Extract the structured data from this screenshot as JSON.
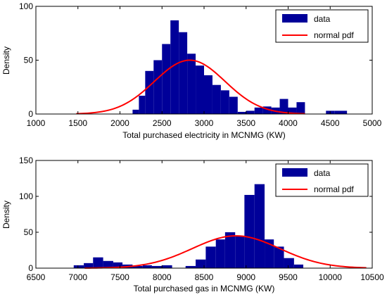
{
  "chart_data": [
    {
      "type": "bar",
      "xlabel": "Total  purchased electricity in MCNMG (KW)",
      "ylabel": "Density",
      "xlim": [
        1000,
        5000
      ],
      "ylim": [
        0,
        100
      ],
      "xticks": [
        "1000",
        "1500",
        "2000",
        "2500",
        "3000",
        "3500",
        "4000",
        "4500",
        "5000"
      ],
      "yticks": [
        "0",
        "50",
        "100"
      ],
      "legend": {
        "placement": "top-right",
        "entries": [
          "data",
          "normal pdf"
        ]
      },
      "series": [
        {
          "name": "data",
          "kind": "histogram",
          "color": "#000099",
          "bins": [
            {
              "x0": 2150,
              "x1": 2225,
              "v": 4
            },
            {
              "x0": 2225,
              "x1": 2300,
              "v": 17
            },
            {
              "x0": 2300,
              "x1": 2400,
              "v": 40
            },
            {
              "x0": 2400,
              "x1": 2500,
              "v": 50
            },
            {
              "x0": 2500,
              "x1": 2600,
              "v": 65
            },
            {
              "x0": 2600,
              "x1": 2700,
              "v": 87
            },
            {
              "x0": 2700,
              "x1": 2800,
              "v": 76
            },
            {
              "x0": 2800,
              "x1": 2900,
              "v": 56
            },
            {
              "x0": 2900,
              "x1": 3000,
              "v": 45
            },
            {
              "x0": 3000,
              "x1": 3100,
              "v": 36
            },
            {
              "x0": 3100,
              "x1": 3200,
              "v": 27
            },
            {
              "x0": 3200,
              "x1": 3300,
              "v": 22
            },
            {
              "x0": 3300,
              "x1": 3400,
              "v": 16
            },
            {
              "x0": 3400,
              "x1": 3500,
              "v": 2
            },
            {
              "x0": 3500,
              "x1": 3600,
              "v": 3
            },
            {
              "x0": 3600,
              "x1": 3700,
              "v": 6
            },
            {
              "x0": 3700,
              "x1": 3800,
              "v": 7
            },
            {
              "x0": 3800,
              "x1": 3900,
              "v": 6
            },
            {
              "x0": 3900,
              "x1": 4000,
              "v": 14
            },
            {
              "x0": 4000,
              "x1": 4100,
              "v": 6
            },
            {
              "x0": 4100,
              "x1": 4200,
              "v": 11
            },
            {
              "x0": 4450,
              "x1": 4550,
              "v": 3
            },
            {
              "x0": 4550,
              "x1": 4700,
              "v": 3
            }
          ]
        },
        {
          "name": "normal pdf",
          "kind": "line",
          "color": "#ff0000",
          "mean": 2830,
          "sd": 420,
          "peak": 50,
          "x_range": [
            1480,
            4200
          ]
        }
      ]
    },
    {
      "type": "bar",
      "xlabel": "Total  purchased gas in MCNMG (KW)",
      "ylabel": "Density",
      "xlim": [
        6500,
        10500
      ],
      "ylim": [
        0,
        150
      ],
      "xticks": [
        "6500",
        "7000",
        "7500",
        "8000",
        "8500",
        "9000",
        "9500",
        "10000",
        "10500"
      ],
      "yticks": [
        "0",
        "50",
        "100",
        "150"
      ],
      "legend": {
        "placement": "top-right",
        "entries": [
          "data",
          "normal pdf"
        ]
      },
      "series": [
        {
          "name": "data",
          "kind": "histogram",
          "color": "#000099",
          "bins": [
            {
              "x0": 6950,
              "x1": 7070,
              "v": 4
            },
            {
              "x0": 7070,
              "x1": 7180,
              "v": 7
            },
            {
              "x0": 7180,
              "x1": 7300,
              "v": 15
            },
            {
              "x0": 7300,
              "x1": 7420,
              "v": 10
            },
            {
              "x0": 7420,
              "x1": 7530,
              "v": 8
            },
            {
              "x0": 7530,
              "x1": 7650,
              "v": 5
            },
            {
              "x0": 7650,
              "x1": 7770,
              "v": 3
            },
            {
              "x0": 7770,
              "x1": 7880,
              "v": 4
            },
            {
              "x0": 7880,
              "x1": 8000,
              "v": 3
            },
            {
              "x0": 8000,
              "x1": 8120,
              "v": 4
            },
            {
              "x0": 8280,
              "x1": 8400,
              "v": 3
            },
            {
              "x0": 8400,
              "x1": 8520,
              "v": 12
            },
            {
              "x0": 8520,
              "x1": 8640,
              "v": 30
            },
            {
              "x0": 8640,
              "x1": 8750,
              "v": 40
            },
            {
              "x0": 8750,
              "x1": 8870,
              "v": 50
            },
            {
              "x0": 8870,
              "x1": 8980,
              "v": 45
            },
            {
              "x0": 8980,
              "x1": 9100,
              "v": 102
            },
            {
              "x0": 9100,
              "x1": 9220,
              "v": 117
            },
            {
              "x0": 9220,
              "x1": 9330,
              "v": 40
            },
            {
              "x0": 9330,
              "x1": 9450,
              "v": 30
            },
            {
              "x0": 9450,
              "x1": 9570,
              "v": 14
            },
            {
              "x0": 9570,
              "x1": 9680,
              "v": 5
            }
          ]
        },
        {
          "name": "normal pdf",
          "kind": "line",
          "color": "#ff0000",
          "mean": 8880,
          "sd": 520,
          "peak": 45,
          "x_range": [
            7080,
            10430
          ]
        }
      ]
    }
  ]
}
